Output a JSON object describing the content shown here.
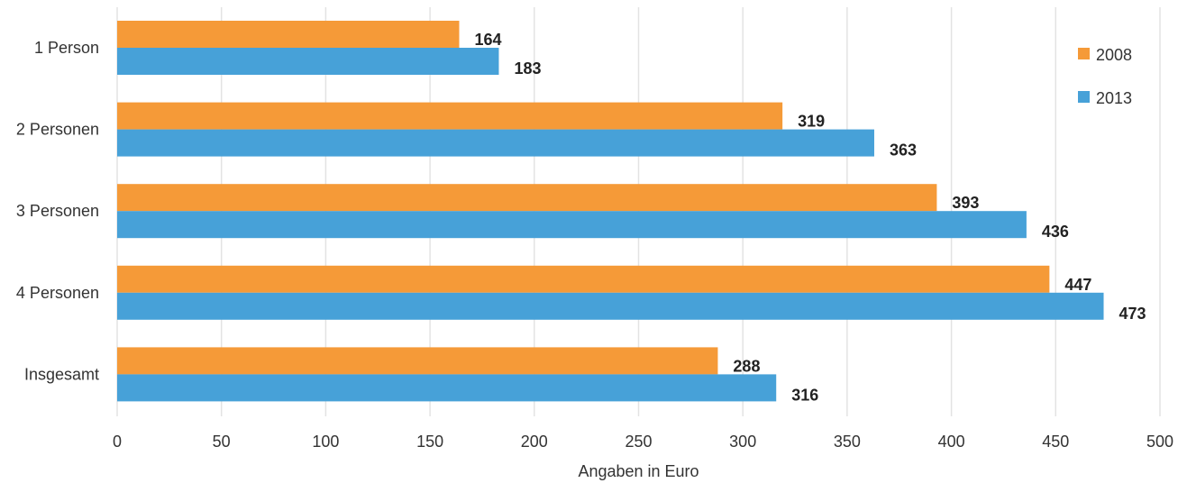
{
  "chart_data": {
    "type": "bar",
    "orientation": "horizontal",
    "categories": [
      "1 Person",
      "2 Personen",
      "3 Personen",
      "4 Personen",
      "Insgesamt"
    ],
    "series": [
      {
        "name": "2008",
        "color": "#F59A38",
        "values": [
          164,
          319,
          393,
          447,
          288
        ]
      },
      {
        "name": "2013",
        "color": "#47A1D8",
        "values": [
          183,
          363,
          436,
          473,
          316
        ]
      }
    ],
    "xlabel": "Angaben in Euro",
    "ylabel": "",
    "xlim": [
      0,
      500
    ],
    "xticks": [
      "0",
      "50",
      "100",
      "150",
      "200",
      "250",
      "300",
      "350",
      "400",
      "450",
      "500"
    ],
    "grid": true,
    "legend_position": "top-right",
    "data_labels": true
  }
}
